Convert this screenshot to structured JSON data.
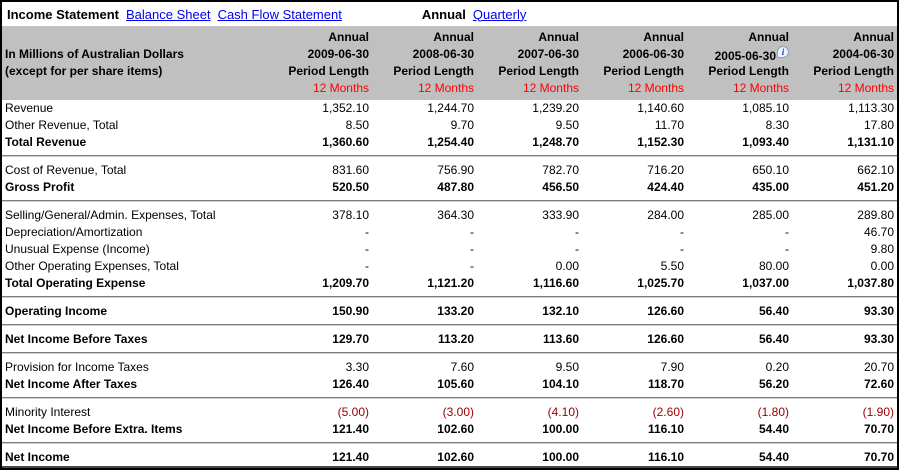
{
  "colors": {
    "header_bg": "#c0c0c0",
    "link_blue": "#0000ee",
    "months_red": "#ff0000",
    "negative_red": "#990000"
  },
  "nav": {
    "statement_tabs": [
      {
        "label": "Income Statement",
        "active": true
      },
      {
        "label": "Balance Sheet",
        "active": false
      },
      {
        "label": "Cash Flow Statement",
        "active": false
      }
    ],
    "period_tabs": [
      {
        "label": "Annual",
        "active": true
      },
      {
        "label": "Quarterly",
        "active": false
      }
    ]
  },
  "table": {
    "unit_line1": "In Millions of Australian Dollars",
    "unit_line2": "(except for per share items)",
    "period_label": "Annual",
    "period_length_label": "Period Length",
    "months_label": "12 Months",
    "info_icon": "i",
    "columns": [
      {
        "date": "2009-06-30",
        "info": false
      },
      {
        "date": "2008-06-30",
        "info": false
      },
      {
        "date": "2007-06-30",
        "info": false
      },
      {
        "date": "2006-06-30",
        "info": false
      },
      {
        "date": "2005-06-30",
        "info": true
      },
      {
        "date": "2004-06-30",
        "info": false
      }
    ],
    "rows": [
      {
        "label": "Revenue",
        "values": [
          "1,352.10",
          "1,244.70",
          "1,239.20",
          "1,140.60",
          "1,085.10",
          "1,113.30"
        ],
        "bold": false,
        "section_start": false,
        "section_end": false,
        "negative": false
      },
      {
        "label": "Other Revenue, Total",
        "values": [
          "8.50",
          "9.70",
          "9.50",
          "11.70",
          "8.30",
          "17.80"
        ],
        "bold": false,
        "section_start": false,
        "section_end": false,
        "negative": false
      },
      {
        "label": "Total Revenue",
        "values": [
          "1,360.60",
          "1,254.40",
          "1,248.70",
          "1,152.30",
          "1,093.40",
          "1,131.10"
        ],
        "bold": true,
        "section_start": false,
        "section_end": true,
        "negative": false
      },
      {
        "label": "Cost of Revenue, Total",
        "values": [
          "831.60",
          "756.90",
          "782.70",
          "716.20",
          "650.10",
          "662.10"
        ],
        "bold": false,
        "section_start": true,
        "section_end": false,
        "negative": false
      },
      {
        "label": "Gross Profit",
        "values": [
          "520.50",
          "487.80",
          "456.50",
          "424.40",
          "435.00",
          "451.20"
        ],
        "bold": true,
        "section_start": false,
        "section_end": true,
        "negative": false
      },
      {
        "label": "Selling/General/Admin. Expenses, Total",
        "values": [
          "378.10",
          "364.30",
          "333.90",
          "284.00",
          "285.00",
          "289.80"
        ],
        "bold": false,
        "section_start": true,
        "section_end": false,
        "negative": false
      },
      {
        "label": "Depreciation/Amortization",
        "values": [
          "-",
          "-",
          "-",
          "-",
          "-",
          "46.70"
        ],
        "bold": false,
        "section_start": false,
        "section_end": false,
        "negative": false
      },
      {
        "label": "Unusual Expense (Income)",
        "values": [
          "-",
          "-",
          "-",
          "-",
          "-",
          "9.80"
        ],
        "bold": false,
        "section_start": false,
        "section_end": false,
        "negative": false
      },
      {
        "label": "Other Operating Expenses, Total",
        "values": [
          "-",
          "-",
          "0.00",
          "5.50",
          "80.00",
          "0.00"
        ],
        "bold": false,
        "section_start": false,
        "section_end": false,
        "negative": false
      },
      {
        "label": "Total Operating Expense",
        "values": [
          "1,209.70",
          "1,121.20",
          "1,116.60",
          "1,025.70",
          "1,037.00",
          "1,037.80"
        ],
        "bold": true,
        "section_start": false,
        "section_end": true,
        "negative": false
      },
      {
        "label": "Operating Income",
        "values": [
          "150.90",
          "133.20",
          "132.10",
          "126.60",
          "56.40",
          "93.30"
        ],
        "bold": true,
        "section_start": true,
        "section_end": true,
        "negative": false
      },
      {
        "label": "Net Income Before Taxes",
        "values": [
          "129.70",
          "113.20",
          "113.60",
          "126.60",
          "56.40",
          "93.30"
        ],
        "bold": true,
        "section_start": true,
        "section_end": true,
        "negative": false
      },
      {
        "label": "Provision for Income Taxes",
        "values": [
          "3.30",
          "7.60",
          "9.50",
          "7.90",
          "0.20",
          "20.70"
        ],
        "bold": false,
        "section_start": true,
        "section_end": false,
        "negative": false
      },
      {
        "label": "Net Income After Taxes",
        "values": [
          "126.40",
          "105.60",
          "104.10",
          "118.70",
          "56.20",
          "72.60"
        ],
        "bold": true,
        "section_start": false,
        "section_end": true,
        "negative": false
      },
      {
        "label": "Minority Interest",
        "values": [
          "(5.00)",
          "(3.00)",
          "(4.10)",
          "(2.60)",
          "(1.80)",
          "(1.90)"
        ],
        "bold": false,
        "section_start": true,
        "section_end": false,
        "negative": true
      },
      {
        "label": "Net Income Before Extra. Items",
        "values": [
          "121.40",
          "102.60",
          "100.00",
          "116.10",
          "54.40",
          "70.70"
        ],
        "bold": true,
        "section_start": false,
        "section_end": true,
        "negative": false
      },
      {
        "label": "Net Income",
        "values": [
          "121.40",
          "102.60",
          "100.00",
          "116.10",
          "54.40",
          "70.70"
        ],
        "bold": true,
        "section_start": true,
        "section_end": false,
        "negative": false,
        "last": true
      }
    ]
  }
}
